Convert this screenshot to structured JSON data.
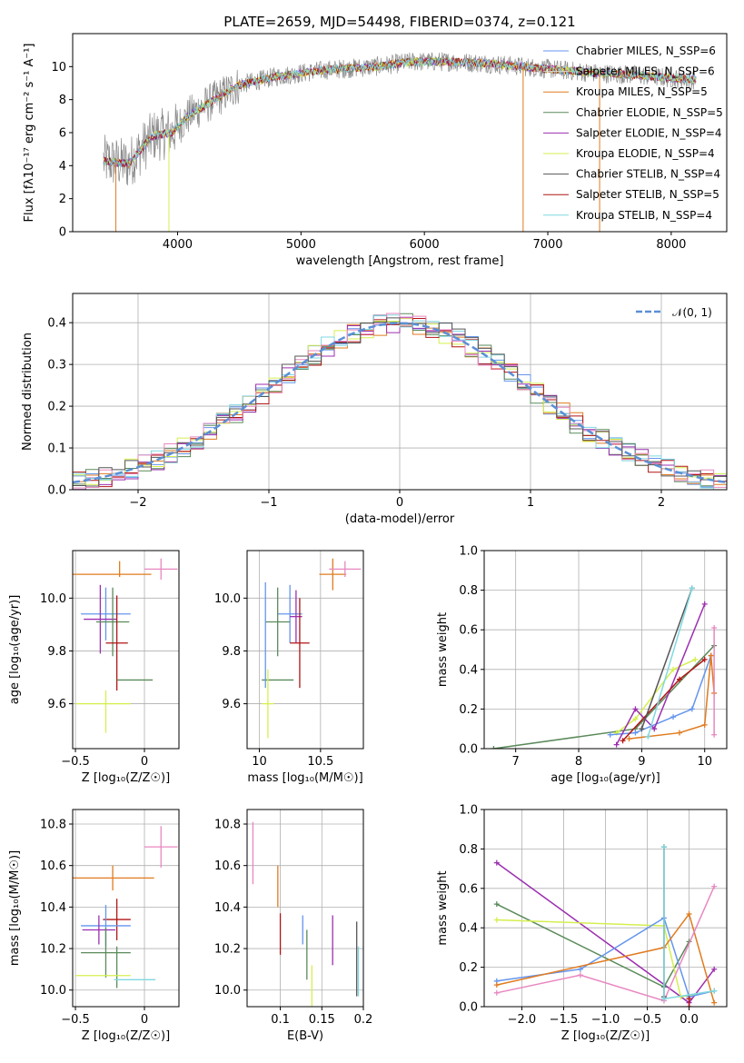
{
  "chart_data": [
    {
      "type": "line",
      "title": "PLATE=2659, MJD=54498, FIBERID=0374, z=0.121",
      "xlabel": "wavelength [Angstrom, rest frame]",
      "ylabel": "Flux [fλ10⁻¹⁷ erg cm⁻² s⁻¹ A⁻¹]",
      "xlim": [
        3150,
        8450
      ],
      "ylim": [
        0,
        12
      ],
      "xticks": [
        4000,
        5000,
        6000,
        7000,
        8000
      ],
      "yticks": [
        0,
        2,
        4,
        6,
        8,
        10
      ],
      "grid": false,
      "legend": "top-right",
      "continuum": [
        [
          3400,
          4.3
        ],
        [
          3600,
          4.1
        ],
        [
          3800,
          5.8
        ],
        [
          3950,
          6.0
        ],
        [
          4100,
          7.1
        ],
        [
          4300,
          8.0
        ],
        [
          4500,
          8.9
        ],
        [
          4800,
          9.4
        ],
        [
          5200,
          9.8
        ],
        [
          5600,
          10.0
        ],
        [
          5900,
          10.3
        ],
        [
          6200,
          10.3
        ],
        [
          6500,
          10.2
        ],
        [
          6800,
          10.0
        ],
        [
          7100,
          9.8
        ],
        [
          7400,
          9.6
        ],
        [
          7700,
          9.5
        ],
        [
          8000,
          9.3
        ],
        [
          8200,
          9.2
        ]
      ],
      "series": [
        {
          "name": "Chabrier MILES, N_SSP=6",
          "color": "#6495ed"
        },
        {
          "name": "Salpeter MILES, N_SSP=6",
          "color": "#d9d9d9"
        },
        {
          "name": "Kroupa MILES, N_SSP=5",
          "color": "#e07b1f"
        },
        {
          "name": "Chabrier ELODIE, N_SSP=5",
          "color": "#5a8a5a"
        },
        {
          "name": "Salpeter ELODIE, N_SSP=4",
          "color": "#9c2fb0"
        },
        {
          "name": "Kroupa ELODIE, N_SSP=4",
          "color": "#d4ef4f"
        },
        {
          "name": "Chabrier STELIB, N_SSP=4",
          "color": "#555555"
        },
        {
          "name": "Salpeter STELIB, N_SSP=5",
          "color": "#b01515"
        },
        {
          "name": "Kroupa STELIB, N_SSP=4",
          "color": "#7fd8e0"
        }
      ]
    },
    {
      "type": "line",
      "xlabel": "(data-model)/error",
      "ylabel": "Normed distribution",
      "xlim": [
        -2.5,
        2.5
      ],
      "ylim": [
        0,
        0.47
      ],
      "xticks": [
        -2,
        -1,
        0,
        1,
        2
      ],
      "yticks": [
        0.0,
        0.1,
        0.2,
        0.3,
        0.4
      ],
      "grid": true,
      "legend": "top-right",
      "legend_label": "𝒩(0, 1)",
      "normal_color": "#5b8fd6",
      "hist_colors": [
        "#6495ed",
        "#e07b1f",
        "#5a8a5a",
        "#9c2fb0",
        "#d4ef4f",
        "#b01515",
        "#7fd8e0",
        "#e887c0",
        "#555555"
      ]
    },
    {
      "type": "scatter",
      "xlabel": "Z [log₁₀(Z/Z☉)]",
      "ylabel": "age  [log₁₀(age/yr)]",
      "xlim": [
        -0.52,
        0.25
      ],
      "ylim": [
        9.43,
        10.18
      ],
      "xticks": [
        -0.5,
        0.0
      ],
      "yticks": [
        9.6,
        9.8,
        10.0
      ],
      "grid": true,
      "points": [
        {
          "x": -0.25,
          "y": 10.09,
          "xerr": 0.3,
          "yerr": 0.0,
          "color": "#e07b1f"
        },
        {
          "x": 0.12,
          "y": 10.11,
          "xerr": 0.12,
          "yerr": 0.04,
          "color": "#e887c0"
        },
        {
          "x": -0.18,
          "y": 10.11,
          "xerr": 0,
          "yerr": 0.03,
          "color": "#e07b1f"
        },
        {
          "x": -0.28,
          "y": 9.94,
          "xerr": 0.18,
          "yerr": 0.1,
          "color": "#6495ed"
        },
        {
          "x": -0.32,
          "y": 9.92,
          "xerr": 0.12,
          "yerr": 0.13,
          "color": "#9c2fb0"
        },
        {
          "x": -0.23,
          "y": 9.91,
          "xerr": 0.12,
          "yerr": 0.13,
          "color": "#5a8a5a"
        },
        {
          "x": -0.2,
          "y": 9.83,
          "xerr": 0.08,
          "yerr": 0.18,
          "color": "#b01515"
        },
        {
          "x": -0.07,
          "y": 9.69,
          "xerr": 0.13,
          "yerr": 0.0,
          "color": "#5a8a5a"
        },
        {
          "x": -0.3,
          "y": 9.6,
          "xerr": 0.2,
          "yerr": 0.0,
          "color": "#d4ef4f"
        },
        {
          "x": -0.28,
          "y": 9.57,
          "xerr": 0,
          "yerr": 0.08,
          "color": "#d4ef4f"
        }
      ]
    },
    {
      "type": "scatter",
      "xlabel": "mass [log₁₀(M/M☉)]",
      "ylabel": "",
      "xlim": [
        9.9,
        10.85
      ],
      "ylim": [
        9.43,
        10.18
      ],
      "xticks": [
        10.0,
        10.5
      ],
      "yticks": [
        9.6,
        9.8,
        10.0
      ],
      "grid": true,
      "points": [
        {
          "x": 10.6,
          "y": 10.09,
          "xerr": 0.11,
          "yerr": 0.06,
          "color": "#e07b1f"
        },
        {
          "x": 10.7,
          "y": 10.11,
          "xerr": 0.13,
          "yerr": 0.03,
          "color": "#e887c0"
        },
        {
          "x": 10.25,
          "y": 9.94,
          "xerr": 0.1,
          "yerr": 0.11,
          "color": "#6495ed"
        },
        {
          "x": 10.3,
          "y": 9.93,
          "xerr": 0.05,
          "yerr": 0.1,
          "color": "#9c2fb0"
        },
        {
          "x": 10.15,
          "y": 9.91,
          "xerr": 0.1,
          "yerr": 0.13,
          "color": "#5a8a5a"
        },
        {
          "x": 10.33,
          "y": 9.83,
          "xerr": 0.08,
          "yerr": 0.17,
          "color": "#b01515"
        },
        {
          "x": 10.15,
          "y": 9.69,
          "xerr": 0.13,
          "yerr": 0.0,
          "color": "#5a8a5a"
        },
        {
          "x": 10.05,
          "y": 9.86,
          "xerr": 0,
          "yerr": 0.2,
          "color": "#6495ed"
        },
        {
          "x": 10.07,
          "y": 9.6,
          "xerr": 0.05,
          "yerr": 0.13,
          "color": "#d4ef4f"
        }
      ]
    },
    {
      "type": "line",
      "xlabel": "age  [log₁₀(age/yr)]",
      "ylabel": "mass weight",
      "xlim": [
        6.5,
        10.35
      ],
      "ylim": [
        0,
        1.0
      ],
      "xticks": [
        7,
        8,
        9,
        10
      ],
      "yticks": [
        0.0,
        0.2,
        0.4,
        0.6,
        0.8,
        1.0
      ],
      "grid": true,
      "series": [
        {
          "color": "#5a8a5a",
          "points": [
            [
              6.65,
              0.0
            ],
            [
              8.9,
              0.1
            ],
            [
              10.15,
              0.52
            ]
          ]
        },
        {
          "color": "#d4ef4f",
          "points": [
            [
              8.6,
              0.08
            ],
            [
              8.9,
              0.15
            ],
            [
              9.5,
              0.4
            ],
            [
              9.85,
              0.45
            ]
          ]
        },
        {
          "color": "#6495ed",
          "points": [
            [
              8.5,
              0.07
            ],
            [
              8.9,
              0.08
            ],
            [
              9.5,
              0.16
            ],
            [
              9.8,
              0.2
            ],
            [
              10.1,
              0.47
            ]
          ]
        },
        {
          "color": "#9c2fb0",
          "points": [
            [
              8.6,
              0.02
            ],
            [
              8.9,
              0.2
            ],
            [
              9.2,
              0.1
            ],
            [
              10.0,
              0.73
            ]
          ]
        },
        {
          "color": "#b01515",
          "points": [
            [
              8.7,
              0.04
            ],
            [
              9.6,
              0.35
            ],
            [
              10.0,
              0.45
            ]
          ]
        },
        {
          "color": "#e07b1f",
          "points": [
            [
              8.8,
              0.05
            ],
            [
              9.6,
              0.08
            ],
            [
              10.0,
              0.12
            ],
            [
              10.1,
              0.47
            ],
            [
              10.15,
              0.28
            ]
          ]
        },
        {
          "color": "#555555",
          "points": [
            [
              9.0,
              0.1
            ],
            [
              9.8,
              0.81
            ]
          ]
        },
        {
          "color": "#7fd8e0",
          "points": [
            [
              9.1,
              0.06
            ],
            [
              9.8,
              0.81
            ]
          ]
        },
        {
          "color": "#e887c0",
          "points": [
            [
              10.15,
              0.07
            ],
            [
              10.15,
              0.61
            ]
          ]
        }
      ]
    },
    {
      "type": "scatter",
      "xlabel": "Z [log₁₀(Z/Z☉)]",
      "ylabel": "mass [log₁₀(M/M☉)]",
      "xlim": [
        -0.52,
        0.25
      ],
      "ylim": [
        9.92,
        10.87
      ],
      "xticks": [
        -0.5,
        0.0
      ],
      "yticks": [
        10.0,
        10.2,
        10.4,
        10.6,
        10.8
      ],
      "grid": true,
      "points": [
        {
          "x": 0.12,
          "y": 10.69,
          "xerr": 0.12,
          "yerr": 0.1,
          "color": "#e887c0"
        },
        {
          "x": -0.23,
          "y": 10.54,
          "xerr": 0.3,
          "yerr": 0.06,
          "color": "#e07b1f"
        },
        {
          "x": -0.2,
          "y": 10.34,
          "xerr": 0.1,
          "yerr": 0.1,
          "color": "#b01515"
        },
        {
          "x": -0.28,
          "y": 10.31,
          "xerr": 0.18,
          "yerr": 0.1,
          "color": "#6495ed"
        },
        {
          "x": -0.33,
          "y": 10.29,
          "xerr": 0.12,
          "yerr": 0.07,
          "color": "#9c2fb0"
        },
        {
          "x": -0.28,
          "y": 10.18,
          "xerr": 0.18,
          "yerr": 0.12,
          "color": "#5a8a5a"
        },
        {
          "x": -0.2,
          "y": 10.11,
          "xerr": 0,
          "yerr": 0.1,
          "color": "#5a8a5a"
        },
        {
          "x": -0.3,
          "y": 10.07,
          "xerr": 0.2,
          "yerr": 0.0,
          "color": "#d4ef4f"
        },
        {
          "x": -0.07,
          "y": 10.05,
          "xerr": 0.15,
          "yerr": 0.0,
          "color": "#7fd8e0"
        }
      ]
    },
    {
      "type": "scatter",
      "xlabel": "E(B-V)",
      "ylabel": "",
      "xlim": [
        0.06,
        0.2
      ],
      "ylim": [
        9.92,
        10.87
      ],
      "xticks": [
        0.1,
        0.15,
        0.2
      ],
      "yticks": [
        10.0,
        10.2,
        10.4,
        10.6,
        10.8
      ],
      "grid": true,
      "points": [
        {
          "x": 0.067,
          "y": 10.66,
          "yerr": 0.15,
          "color": "#e887c0"
        },
        {
          "x": 0.097,
          "y": 10.5,
          "yerr": 0.1,
          "color": "#e07b1f"
        },
        {
          "x": 0.1,
          "y": 10.27,
          "yerr": 0.1,
          "color": "#b01515"
        },
        {
          "x": 0.127,
          "y": 10.29,
          "yerr": 0.07,
          "color": "#6495ed"
        },
        {
          "x": 0.132,
          "y": 10.17,
          "yerr": 0.12,
          "color": "#5a8a5a"
        },
        {
          "x": 0.138,
          "y": 10.0,
          "yerr": 0.12,
          "color": "#d4ef4f"
        },
        {
          "x": 0.163,
          "y": 10.24,
          "yerr": 0.12,
          "color": "#9c2fb0"
        },
        {
          "x": 0.192,
          "y": 10.15,
          "yerr": 0.18,
          "color": "#555555"
        },
        {
          "x": 0.194,
          "y": 10.09,
          "yerr": 0.12,
          "color": "#7fd8e0"
        }
      ]
    },
    {
      "type": "line",
      "xlabel": "Z [log₁₀(Z/Z☉)]",
      "ylabel": "mass weight",
      "xlim": [
        -2.45,
        0.45
      ],
      "ylim": [
        0,
        1.0
      ],
      "xticks": [
        -2.0,
        -1.5,
        -1.0,
        -0.5,
        0.0
      ],
      "yticks": [
        0.0,
        0.2,
        0.4,
        0.6,
        0.8,
        1.0
      ],
      "grid": true,
      "series": [
        {
          "color": "#9c2fb0",
          "points": [
            [
              -2.3,
              0.73
            ],
            [
              0.0,
              0.02
            ],
            [
              0.3,
              0.19
            ]
          ]
        },
        {
          "color": "#5a8a5a",
          "points": [
            [
              -2.3,
              0.52
            ],
            [
              -0.3,
              0.1
            ],
            [
              0.0,
              0.33
            ]
          ]
        },
        {
          "color": "#d4ef4f",
          "points": [
            [
              -2.3,
              0.44
            ],
            [
              -0.3,
              0.41
            ],
            [
              -0.1,
              0.05
            ],
            [
              0.3,
              0.08
            ]
          ]
        },
        {
          "color": "#6495ed",
          "points": [
            [
              -2.3,
              0.13
            ],
            [
              -1.3,
              0.19
            ],
            [
              -0.3,
              0.45
            ],
            [
              0.0,
              0.05
            ],
            [
              0.3,
              0.08
            ]
          ]
        },
        {
          "color": "#e07b1f",
          "points": [
            [
              -2.3,
              0.11
            ],
            [
              -0.3,
              0.3
            ],
            [
              0.0,
              0.47
            ],
            [
              0.3,
              0.02
            ]
          ]
        },
        {
          "color": "#e887c0",
          "points": [
            [
              -2.3,
              0.07
            ],
            [
              -1.3,
              0.16
            ],
            [
              -0.3,
              0.03
            ],
            [
              0.3,
              0.61
            ]
          ]
        },
        {
          "color": "#555555",
          "points": [
            [
              -0.3,
              0.81
            ],
            [
              -0.3,
              0.05
            ]
          ]
        },
        {
          "color": "#7fd8e0",
          "points": [
            [
              -0.3,
              0.81
            ],
            [
              -0.3,
              0.04
            ],
            [
              0.3,
              0.08
            ]
          ]
        },
        {
          "color": "#b01515",
          "points": [
            [
              0.0,
              0.04
            ],
            [
              0.0,
              0.0
            ]
          ]
        }
      ]
    }
  ]
}
